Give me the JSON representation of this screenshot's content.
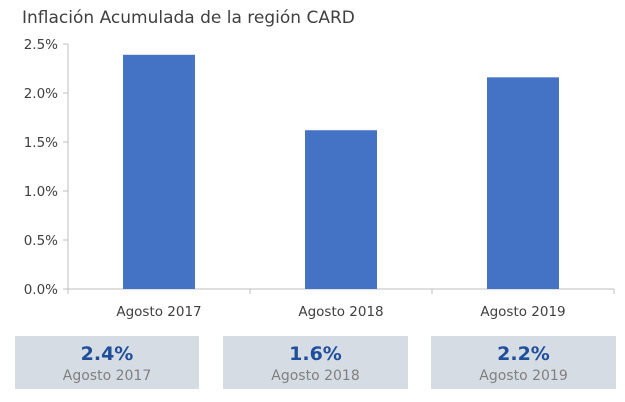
{
  "chart_data": {
    "type": "bar",
    "title": "Inflación Acumulada de la región CARD",
    "categories": [
      "Agosto 2017",
      "Agosto 2018",
      "Agosto 2019"
    ],
    "values": [
      2.39,
      1.62,
      2.16
    ],
    "ylim": [
      0,
      2.5
    ],
    "yticks": [
      "0.0%",
      "0.5%",
      "1.0%",
      "1.5%",
      "2.0%",
      "2.5%"
    ],
    "xlabel": "",
    "ylabel": "",
    "bar_color": "#4472c4",
    "grid": false,
    "legend": "none"
  },
  "summary": [
    {
      "value": "2.4%",
      "label": "Agosto 2017"
    },
    {
      "value": "1.6%",
      "label": "Agosto 2018"
    },
    {
      "value": "2.2%",
      "label": "Agosto 2019"
    }
  ],
  "colors": {
    "summary_bg": "#d6dce4",
    "summary_value": "#1f4e9b",
    "summary_label": "#808080",
    "axis": "#bfbfbf",
    "text": "#404040"
  }
}
